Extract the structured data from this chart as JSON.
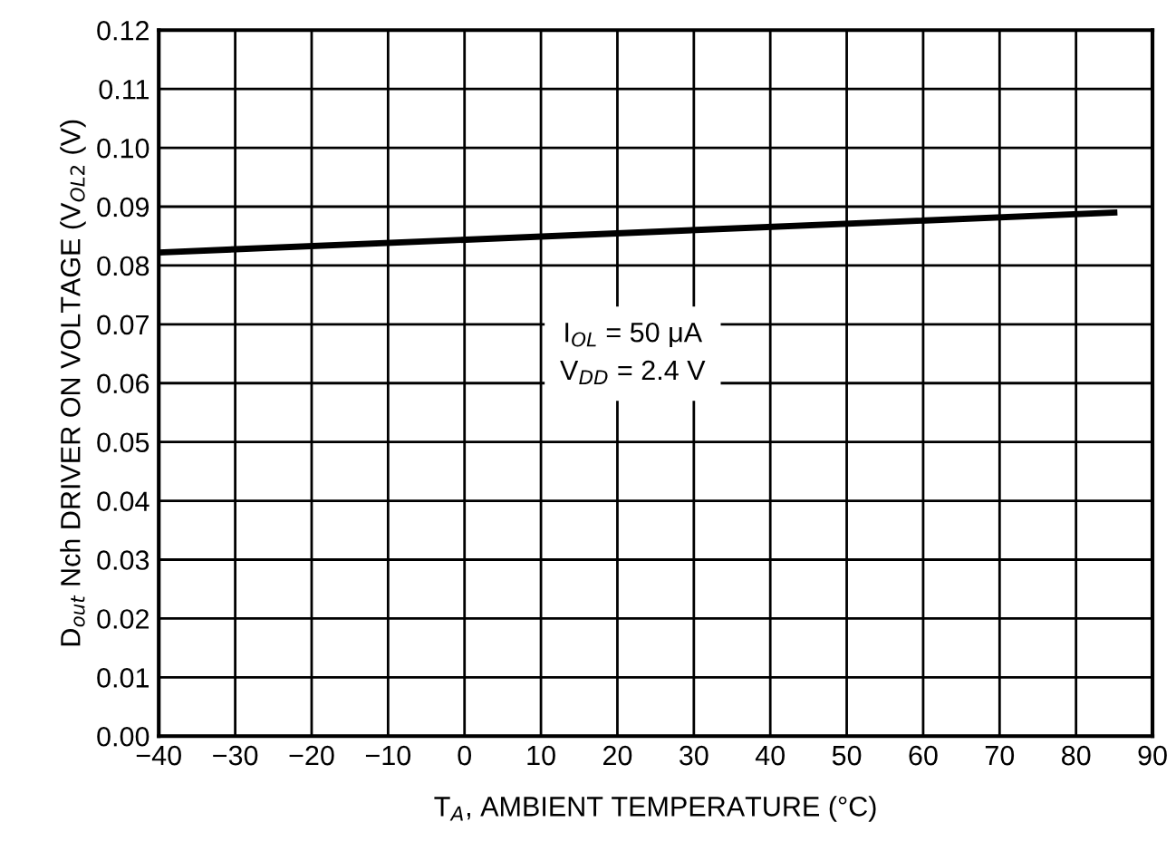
{
  "chart_data": {
    "type": "line",
    "xlabel": "T$_{A}$, AMBIENT TEMPERATURE (°C)",
    "ylabel": "D$_{out}$ Nch DRIVER ON VOLTAGE (V$_{OL2}$ (V)",
    "x": [
      -40,
      85
    ],
    "series": [
      {
        "color": "#000000",
        "values": [
          0.0822,
          0.089
        ]
      }
    ],
    "xlim": [
      -40,
      90
    ],
    "xticks": [
      {
        "value": -40,
        "label": "−40"
      },
      {
        "value": -30,
        "label": "−30"
      },
      {
        "value": -20,
        "label": "−20"
      },
      {
        "value": -10,
        "label": "−10"
      },
      0,
      10,
      20,
      30,
      40,
      50,
      60,
      70,
      80,
      90
    ],
    "ylim": [
      0,
      0.12
    ],
    "yticks": [
      {
        "value": 0,
        "label": "0.00"
      },
      {
        "value": 0.01,
        "label": "0.01"
      },
      {
        "value": 0.02,
        "label": "0.02"
      },
      {
        "value": 0.03,
        "label": "0.03"
      },
      {
        "value": 0.04,
        "label": "0.04"
      },
      {
        "value": 0.05,
        "label": "0.05"
      },
      {
        "value": 0.06,
        "label": "0.06"
      },
      {
        "value": 0.07,
        "label": "0.07"
      },
      {
        "value": 0.08,
        "label": "0.08"
      },
      {
        "value": 0.09,
        "label": "0.09"
      },
      {
        "value": 0.1,
        "label": "0.10"
      },
      {
        "value": 0.11,
        "label": "0.11"
      },
      {
        "value": 0.12,
        "label": "0.12"
      }
    ],
    "grid": true,
    "marker": "none",
    "line_style": "solid",
    "annotations": [
      "I$_{OL}$ = 50 μA\nV$_{DD}$ = 2.4 V"
    ]
  }
}
